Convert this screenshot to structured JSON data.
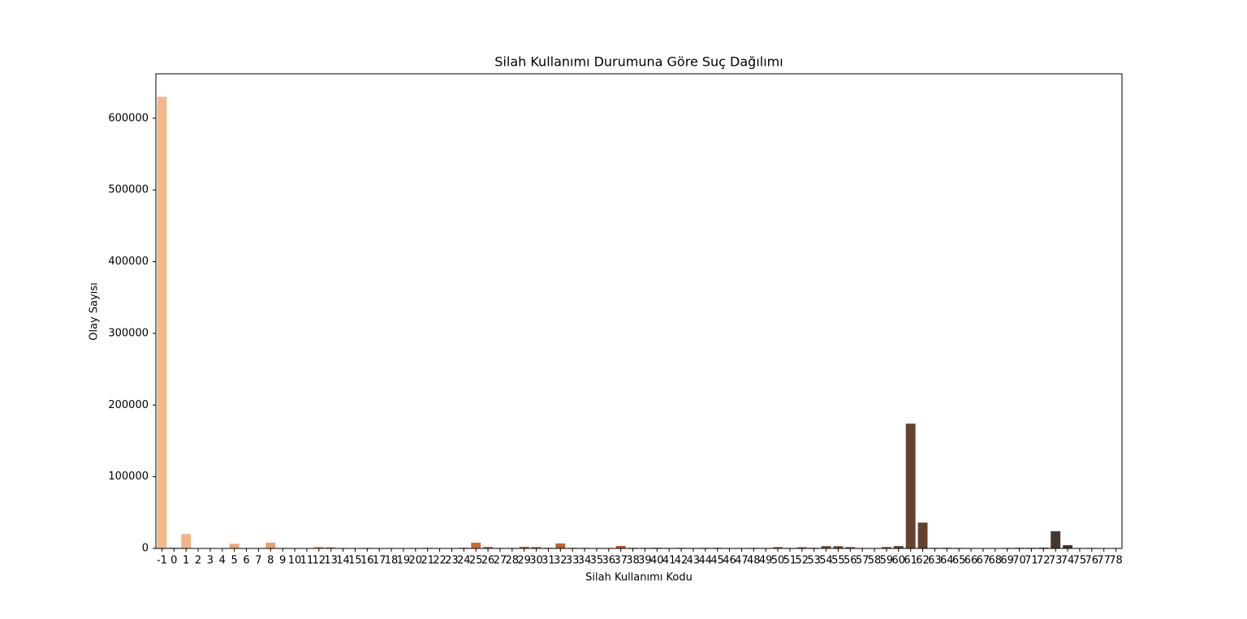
{
  "chart_data": {
    "type": "bar",
    "title": "Silah Kullanımı Durumuna Göre Suç Dağılımı",
    "x_label": "Silah Kullanımı Kodu",
    "y_label": "Olay Sayısı",
    "categories": [
      "-1",
      "0",
      "1",
      "2",
      "3",
      "4",
      "5",
      "6",
      "7",
      "8",
      "9",
      "10",
      "11",
      "12",
      "13",
      "14",
      "15",
      "16",
      "17",
      "18",
      "19",
      "20",
      "21",
      "22",
      "23",
      "24",
      "25",
      "26",
      "27",
      "28",
      "29",
      "30",
      "31",
      "32",
      "33",
      "34",
      "35",
      "36",
      "37",
      "38",
      "39",
      "40",
      "41",
      "42",
      "43",
      "44",
      "45",
      "46",
      "47",
      "48",
      "49",
      "50",
      "51",
      "52",
      "53",
      "54",
      "55",
      "56",
      "57",
      "58",
      "59",
      "60",
      "61",
      "62",
      "63",
      "64",
      "65",
      "66",
      "67",
      "68",
      "69",
      "70",
      "71",
      "72",
      "73",
      "74",
      "75",
      "76",
      "77",
      "78"
    ],
    "values": [
      630000,
      1500,
      20000,
      300,
      200,
      300,
      6500,
      500,
      400,
      8000,
      800,
      600,
      500,
      2000,
      1800,
      700,
      300,
      800,
      300,
      200,
      300,
      400,
      900,
      300,
      400,
      1000,
      8000,
      2200,
      700,
      800,
      2300,
      2000,
      900,
      7000,
      900,
      800,
      600,
      700,
      3500,
      900,
      800,
      1000,
      700,
      900,
      700,
      800,
      900,
      600,
      700,
      800,
      700,
      1800,
      700,
      1600,
      900,
      3200,
      3100,
      1800,
      700,
      600,
      1800,
      3300,
      174000,
      36000,
      800,
      900,
      700,
      600,
      500,
      500,
      700,
      900,
      800,
      1100,
      24000,
      4500,
      600,
      700,
      500,
      400
    ],
    "palette": [
      "#f2ba8c",
      "#d2692e",
      "#7a4a2e",
      "#3c3330"
    ],
    "ylim": [
      0,
      662000
    ],
    "yticks": [
      0,
      100000,
      200000,
      300000,
      400000,
      500000,
      600000
    ],
    "grid": false
  }
}
